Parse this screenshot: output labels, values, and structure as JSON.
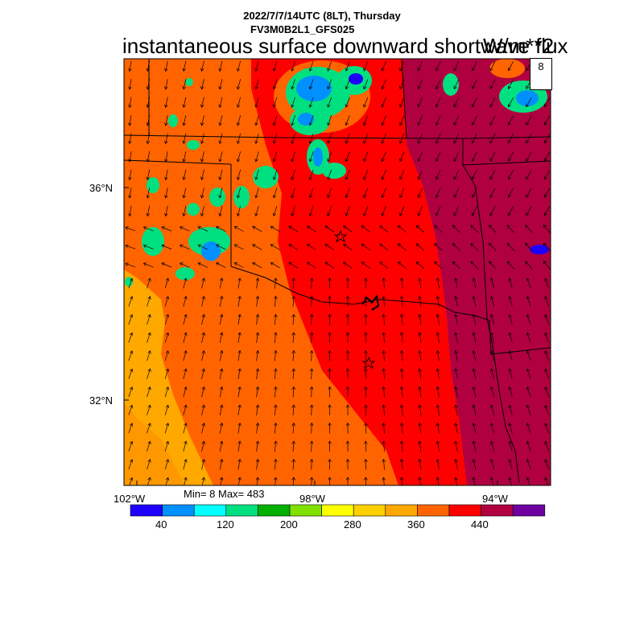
{
  "header": {
    "line1": "2022/7/7/14UTC (8LT), Thursday",
    "line2": "FV3M0B2L1_GFS025",
    "title_main": "instantaneous surface downward shortwave flux",
    "title_units": "W/m**2"
  },
  "map": {
    "lat_labels": [
      "36°N",
      "32°N"
    ],
    "lon_labels": [
      "102°W",
      "98°W",
      "94°W"
    ],
    "vector_reference": "8",
    "min_max": "Min= 8 Max= 483",
    "city_markers": [
      "star",
      "star"
    ]
  },
  "colorbar": {
    "colors": [
      "#1e00ff",
      "#0090ff",
      "#00ffff",
      "#00e080",
      "#00b000",
      "#80e000",
      "#ffff00",
      "#ffd000",
      "#ffa800",
      "#ff6400",
      "#ff0000",
      "#b00040",
      "#6e00a0"
    ],
    "tick_labels": [
      "40",
      "120",
      "200",
      "280",
      "360",
      "440"
    ]
  },
  "colors": {
    "field_low": "#ffa800",
    "field_mid": "#ff6400",
    "field_high": "#ff0000",
    "field_max": "#b00040",
    "clouds": "#00e080"
  }
}
